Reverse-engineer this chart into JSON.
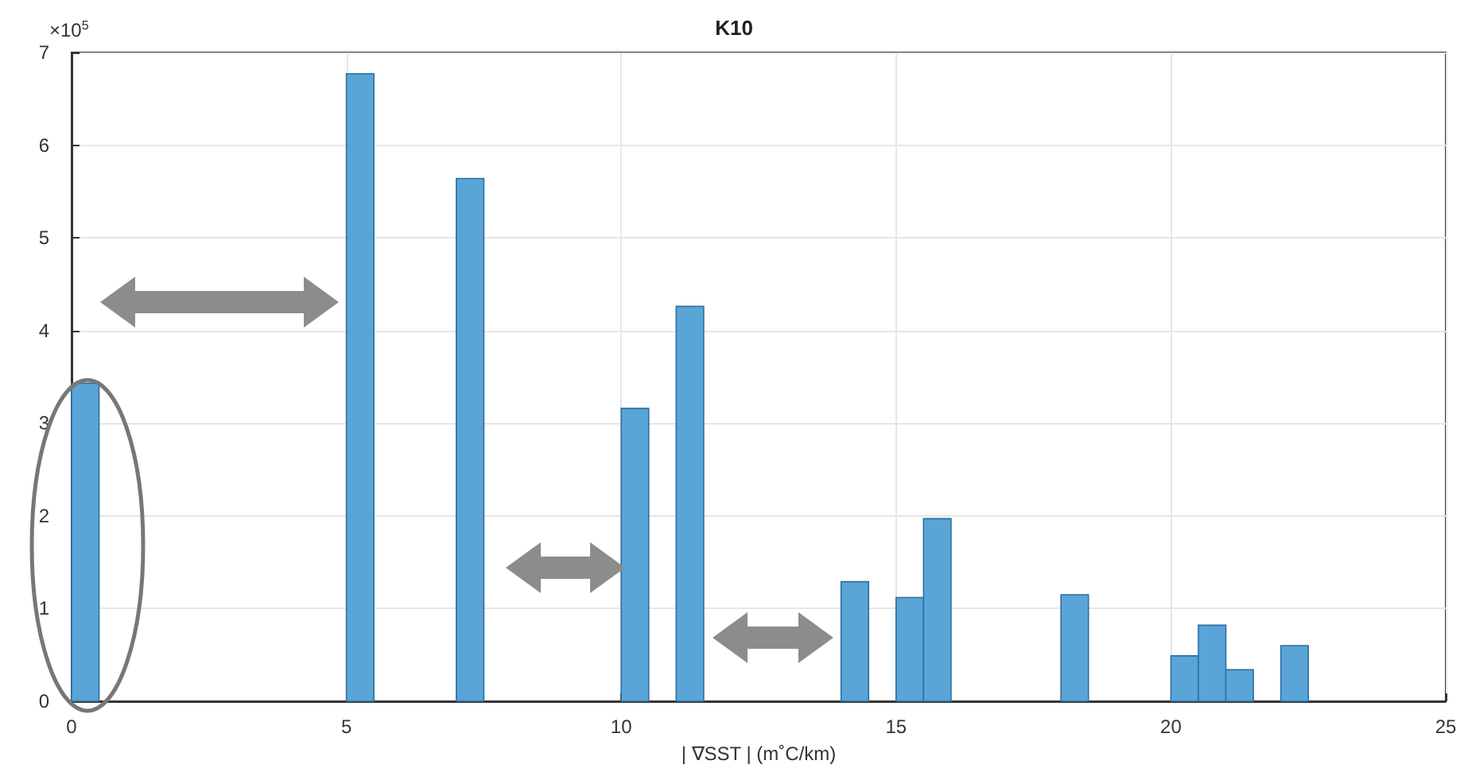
{
  "chart_data": {
    "type": "histogram",
    "title": "K10",
    "xlabel": "| ∇SST | (m˚C/km)",
    "bins": [
      0,
      0.5,
      1,
      1.5,
      2,
      2.5,
      3,
      3.5,
      4,
      4.5,
      5,
      5.5,
      6,
      6.5,
      7,
      7.5,
      8,
      8.5,
      9,
      9.5,
      10,
      10.5,
      11,
      11.5,
      12,
      12.5,
      13,
      13.5,
      14,
      14.5,
      15,
      15.5,
      16,
      16.5,
      17,
      17.5,
      18,
      18.5,
      19,
      19.5,
      20,
      20.5,
      21,
      21.5,
      22,
      22.5
    ],
    "values": [
      3.43,
      0,
      0,
      0,
      0,
      0,
      0,
      0,
      0,
      0,
      6.77,
      0,
      0,
      0,
      5.64,
      0,
      0,
      0,
      0,
      0,
      3.16,
      0,
      4.26,
      0,
      0,
      0,
      0,
      0,
      1.29,
      0,
      1.12,
      1.97,
      0,
      0,
      0,
      0,
      1.15,
      0,
      0,
      0,
      0.49,
      0.82,
      0.34,
      0,
      0.6
    ],
    "color": "#5aa5d8",
    "xlim": [
      0,
      25
    ],
    "xticks": [
      0,
      5,
      10,
      15,
      20,
      25
    ],
    "ylim": [
      0,
      7
    ],
    "yticks": [
      0,
      1,
      2,
      3,
      4,
      5,
      6,
      7
    ],
    "annotations": [
      "×10$^{5}$"
    ],
    "grid": true
  }
}
